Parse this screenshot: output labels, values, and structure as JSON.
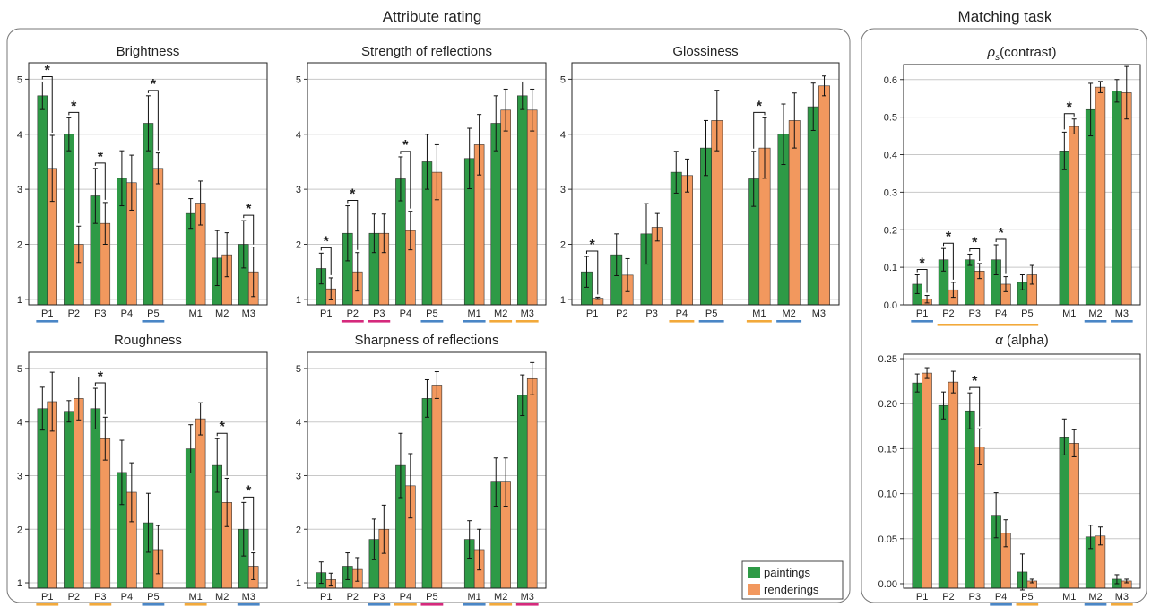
{
  "sections": {
    "attribute_title": "Attribute rating",
    "matching_title": "Matching task"
  },
  "legend": {
    "paintings": "paintings",
    "renderings": "renderings"
  },
  "colors": {
    "paintings": "#2e9a46",
    "renderings": "#f2985e",
    "underline_blue": "#4a86c6",
    "underline_orange": "#f2a93b",
    "underline_magenta": "#d5297c"
  },
  "significance_marker": "*",
  "chart_data": [
    {
      "type": "bar",
      "title": "Brightness",
      "categories": [
        "P1",
        "P2",
        "P3",
        "P4",
        "P5",
        "M1",
        "M2",
        "M3"
      ],
      "ylim": [
        0.9,
        5.3
      ],
      "yticks": [
        "1",
        "2",
        "3",
        "4",
        "5"
      ],
      "series": [
        {
          "name": "paintings",
          "values": [
            4.7,
            4.0,
            2.88,
            3.2,
            4.2,
            2.56,
            1.75,
            2.0
          ],
          "err": [
            0.25,
            0.3,
            0.5,
            0.5,
            0.5,
            0.27,
            0.5,
            0.43
          ]
        },
        {
          "name": "renderings",
          "values": [
            3.38,
            2.0,
            2.38,
            3.12,
            3.38,
            2.75,
            1.81,
            1.5
          ],
          "err": [
            0.6,
            0.33,
            0.38,
            0.5,
            0.28,
            0.4,
            0.4,
            0.45
          ]
        }
      ],
      "significant": [
        "P1",
        "P2",
        "P3",
        "P5",
        "M3"
      ],
      "underlines": [
        {
          "category": "P1",
          "color": "blue"
        },
        {
          "category": "P5",
          "color": "blue"
        }
      ]
    },
    {
      "type": "bar",
      "title": "Strength of reflections",
      "categories": [
        "P1",
        "P2",
        "P3",
        "P4",
        "P5",
        "M1",
        "M2",
        "M3"
      ],
      "ylim": [
        0.9,
        5.3
      ],
      "yticks": [
        "1",
        "2",
        "3",
        "4",
        "5"
      ],
      "series": [
        {
          "name": "paintings",
          "values": [
            1.56,
            2.2,
            2.2,
            3.19,
            3.5,
            3.56,
            4.2,
            4.7
          ],
          "err": [
            0.28,
            0.5,
            0.35,
            0.4,
            0.5,
            0.55,
            0.5,
            0.25
          ]
        },
        {
          "name": "renderings",
          "values": [
            1.19,
            1.5,
            2.2,
            2.25,
            3.31,
            3.81,
            4.44,
            4.44
          ],
          "err": [
            0.2,
            0.35,
            0.35,
            0.35,
            0.5,
            0.55,
            0.38,
            0.38
          ]
        }
      ],
      "significant": [
        "P1",
        "P2",
        "P4"
      ],
      "underlines": [
        {
          "category": "P2",
          "color": "magenta"
        },
        {
          "category": "P3",
          "color": "magenta"
        },
        {
          "category": "P5",
          "color": "blue"
        },
        {
          "category": "M1",
          "color": "blue"
        },
        {
          "category": "M2",
          "color": "orange"
        },
        {
          "category": "M3",
          "color": "orange"
        }
      ]
    },
    {
      "type": "bar",
      "title": "Glossiness",
      "categories": [
        "P1",
        "P2",
        "P3",
        "P4",
        "P5",
        "M1",
        "M2",
        "M3"
      ],
      "ylim": [
        0.9,
        5.3
      ],
      "yticks": [
        "1",
        "2",
        "3",
        "4",
        "5"
      ],
      "series": [
        {
          "name": "paintings",
          "values": [
            1.5,
            1.81,
            2.19,
            3.31,
            3.75,
            3.19,
            4.0,
            4.5
          ],
          "err": [
            0.28,
            0.38,
            0.55,
            0.38,
            0.5,
            0.5,
            0.55,
            0.43
          ]
        },
        {
          "name": "renderings",
          "values": [
            1.02,
            1.44,
            2.31,
            3.25,
            4.25,
            3.75,
            4.25,
            4.88
          ],
          "err": [
            0.02,
            0.3,
            0.25,
            0.3,
            0.55,
            0.55,
            0.5,
            0.18
          ]
        }
      ],
      "significant": [
        "P1",
        "M1"
      ],
      "underlines": [
        {
          "category": "P4",
          "color": "orange"
        },
        {
          "category": "P5",
          "color": "blue"
        },
        {
          "category": "M1",
          "color": "orange"
        },
        {
          "category": "M2",
          "color": "blue"
        }
      ]
    },
    {
      "type": "bar",
      "title": "Roughness",
      "categories": [
        "P1",
        "P2",
        "P3",
        "P4",
        "P5",
        "M1",
        "M2",
        "M3"
      ],
      "ylim": [
        0.9,
        5.3
      ],
      "yticks": [
        "1",
        "2",
        "3",
        "4",
        "5"
      ],
      "series": [
        {
          "name": "paintings",
          "values": [
            4.25,
            4.2,
            4.25,
            3.06,
            2.12,
            3.5,
            3.19,
            2.0
          ],
          "err": [
            0.4,
            0.2,
            0.38,
            0.6,
            0.55,
            0.45,
            0.5,
            0.5
          ]
        },
        {
          "name": "renderings",
          "values": [
            4.38,
            4.44,
            3.69,
            2.69,
            1.62,
            4.06,
            2.5,
            1.31
          ],
          "err": [
            0.55,
            0.4,
            0.4,
            0.55,
            0.45,
            0.3,
            0.45,
            0.25
          ]
        }
      ],
      "significant": [
        "P3",
        "M2",
        "M3"
      ],
      "underlines": [
        {
          "category": "P1",
          "color": "orange"
        },
        {
          "category": "P3",
          "color": "orange"
        },
        {
          "category": "P5",
          "color": "blue"
        },
        {
          "category": "M1",
          "color": "orange"
        },
        {
          "category": "M3",
          "color": "blue"
        }
      ],
      "span_underlines": [
        {
          "from": "P1",
          "to": "P3",
          "color": "magenta"
        }
      ]
    },
    {
      "type": "bar",
      "title": "Sharpness of reflections",
      "categories": [
        "P1",
        "P2",
        "P3",
        "P4",
        "P5",
        "M1",
        "M2",
        "M3"
      ],
      "ylim": [
        0.9,
        5.3
      ],
      "yticks": [
        "1",
        "2",
        "3",
        "4",
        "5"
      ],
      "series": [
        {
          "name": "paintings",
          "values": [
            1.19,
            1.31,
            1.81,
            3.19,
            4.44,
            1.81,
            2.88,
            4.5
          ],
          "err": [
            0.2,
            0.25,
            0.38,
            0.6,
            0.35,
            0.35,
            0.45,
            0.38
          ]
        },
        {
          "name": "renderings",
          "values": [
            1.06,
            1.25,
            2.0,
            2.81,
            4.69,
            1.62,
            2.88,
            4.81
          ],
          "err": [
            0.12,
            0.22,
            0.45,
            0.6,
            0.25,
            0.38,
            0.45,
            0.3
          ]
        }
      ],
      "significant": [],
      "underlines": [
        {
          "category": "P3",
          "color": "blue"
        },
        {
          "category": "P4",
          "color": "orange"
        },
        {
          "category": "P5",
          "color": "magenta"
        },
        {
          "category": "M1",
          "color": "blue"
        },
        {
          "category": "M2",
          "color": "orange"
        },
        {
          "category": "M3",
          "color": "magenta"
        }
      ]
    },
    {
      "type": "bar",
      "title": "ρs (contrast)",
      "title_symbol": "ρ",
      "title_subscript": "s",
      "title_rest": "(contrast)",
      "categories": [
        "P1",
        "P2",
        "P3",
        "P4",
        "P5",
        "M1",
        "M2",
        "M3"
      ],
      "ylim": [
        0.0,
        0.64
      ],
      "yticks": [
        "0.0",
        "0.1",
        "0.2",
        "0.3",
        "0.4",
        "0.5",
        "0.6"
      ],
      "series": [
        {
          "name": "paintings",
          "values": [
            0.055,
            0.12,
            0.12,
            0.12,
            0.06,
            0.41,
            0.52,
            0.57
          ],
          "err": [
            0.025,
            0.03,
            0.015,
            0.04,
            0.02,
            0.05,
            0.07,
            0.03
          ]
        },
        {
          "name": "renderings",
          "values": [
            0.015,
            0.04,
            0.09,
            0.055,
            0.08,
            0.475,
            0.58,
            0.565
          ],
          "err": [
            0.01,
            0.02,
            0.02,
            0.02,
            0.025,
            0.02,
            0.015,
            0.07
          ]
        }
      ],
      "significant": [
        "P1",
        "P2",
        "P3",
        "P4",
        "M1"
      ],
      "underlines": [
        {
          "category": "P1",
          "color": "blue"
        },
        {
          "category": "M2",
          "color": "blue"
        },
        {
          "category": "M3",
          "color": "blue"
        }
      ],
      "span_underlines": [
        {
          "from": "P2",
          "to": "P5",
          "color": "orange"
        }
      ]
    },
    {
      "type": "bar",
      "title": "α (alpha)",
      "title_symbol": "α",
      "title_rest": "(alpha)",
      "categories": [
        "P1",
        "P2",
        "P3",
        "P4",
        "P5",
        "M1",
        "M2",
        "M3"
      ],
      "ylim": [
        -0.005,
        0.255
      ],
      "yticks": [
        "0.00",
        "0.05",
        "0.10",
        "0.15",
        "0.20",
        "0.25"
      ],
      "series": [
        {
          "name": "paintings",
          "values": [
            0.223,
            0.198,
            0.192,
            0.076,
            0.013,
            0.163,
            0.052,
            0.005
          ],
          "err": [
            0.01,
            0.015,
            0.02,
            0.025,
            0.02,
            0.02,
            0.013,
            0.005
          ]
        },
        {
          "name": "renderings",
          "values": [
            0.234,
            0.224,
            0.152,
            0.056,
            0.003,
            0.156,
            0.053,
            0.003
          ],
          "err": [
            0.006,
            0.012,
            0.02,
            0.015,
            0.002,
            0.015,
            0.01,
            0.002
          ]
        }
      ],
      "significant": [
        "P3"
      ],
      "underlines": [
        {
          "category": "P4",
          "color": "blue"
        },
        {
          "category": "P5",
          "color": "orange"
        },
        {
          "category": "M2",
          "color": "blue"
        },
        {
          "category": "M3",
          "color": "orange"
        }
      ]
    }
  ]
}
